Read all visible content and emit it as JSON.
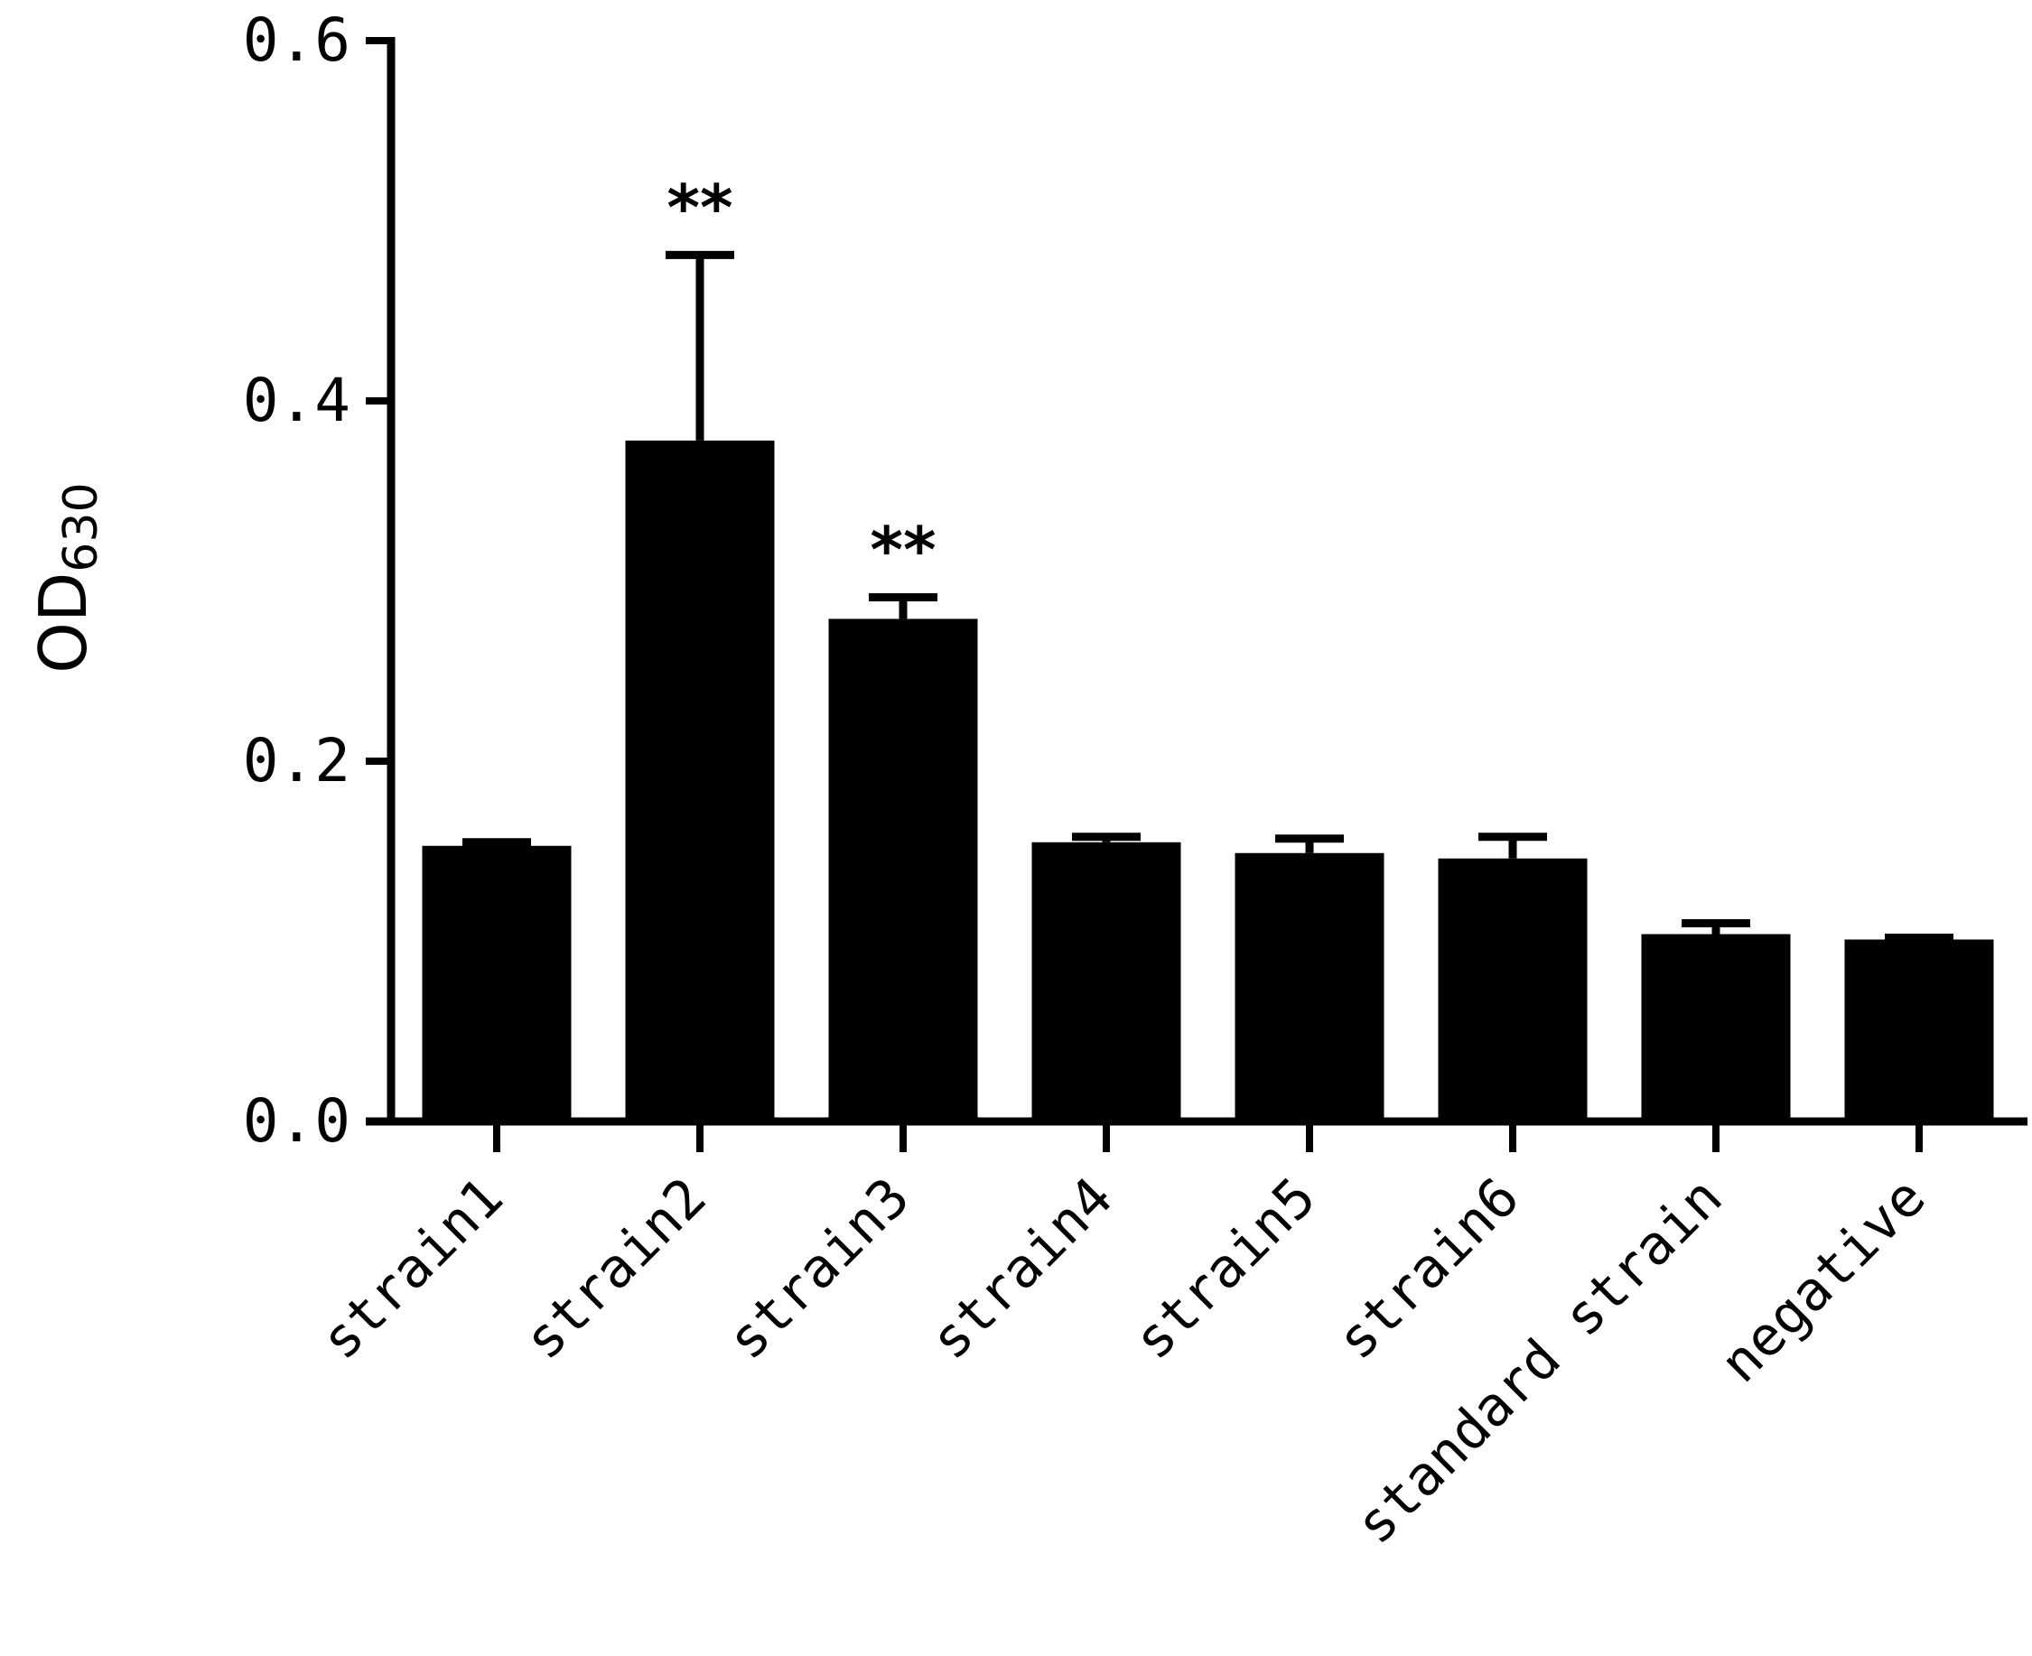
{
  "chart_data": {
    "type": "bar",
    "categories": [
      "strain1",
      "strain2",
      "strain3",
      "strain4",
      "strain5",
      "strain6",
      "standard strain",
      "negative"
    ],
    "values": [
      0.153,
      0.378,
      0.279,
      0.155,
      0.149,
      0.146,
      0.104,
      0.101
    ],
    "error": [
      0.002,
      0.103,
      0.012,
      0.003,
      0.008,
      0.012,
      0.006,
      0.001
    ],
    "annotations": [
      "",
      "**",
      "**",
      "",
      "",
      "",
      "",
      ""
    ],
    "ylabel_main": "OD",
    "ylabel_sub": "630",
    "ylim": [
      0,
      0.6
    ],
    "yticks": [
      "0.0",
      "0.2",
      "0.4",
      "0.6"
    ],
    "ytick_values": [
      0,
      0.2,
      0.4,
      0.6
    ],
    "bar_color": "#000000",
    "grid": false
  }
}
